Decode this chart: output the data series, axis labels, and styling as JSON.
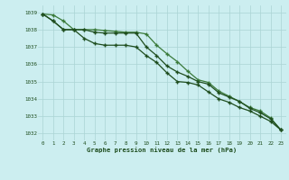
{
  "title": "Graphe pression niveau de la mer (hPa)",
  "bg_color": "#cceef0",
  "grid_color": "#aad4d4",
  "line_color_dark": "#1e4d1e",
  "line_color_light": "#3a7a3a",
  "xlim": [
    -0.5,
    23.5
  ],
  "ylim": [
    1031.6,
    1039.4
  ],
  "yticks": [
    1032,
    1033,
    1034,
    1035,
    1036,
    1037,
    1038,
    1039
  ],
  "xticks": [
    0,
    1,
    2,
    3,
    4,
    5,
    6,
    7,
    8,
    9,
    10,
    11,
    12,
    13,
    14,
    15,
    16,
    17,
    18,
    19,
    20,
    21,
    22,
    23
  ],
  "series1": [
    1038.9,
    1038.85,
    1038.5,
    1038.0,
    1038.0,
    1038.0,
    1037.95,
    1037.9,
    1037.85,
    1037.85,
    1037.75,
    1037.1,
    1036.6,
    1036.15,
    1035.6,
    1035.1,
    1034.95,
    1034.45,
    1034.15,
    1033.85,
    1033.5,
    1033.3,
    1032.9,
    1032.2
  ],
  "series2": [
    1038.9,
    1038.5,
    1038.0,
    1038.0,
    1038.0,
    1037.85,
    1037.8,
    1037.8,
    1037.8,
    1037.8,
    1037.0,
    1036.5,
    1035.9,
    1035.55,
    1035.3,
    1035.0,
    1034.85,
    1034.35,
    1034.1,
    1033.85,
    1033.45,
    1033.2,
    1032.85,
    1032.2
  ],
  "series3": [
    1038.9,
    1038.5,
    1038.0,
    1038.0,
    1037.5,
    1037.2,
    1037.1,
    1037.1,
    1037.1,
    1037.0,
    1036.5,
    1036.1,
    1035.5,
    1035.0,
    1034.95,
    1034.8,
    1034.4,
    1034.0,
    1033.8,
    1033.5,
    1033.3,
    1033.0,
    1032.7,
    1032.2
  ]
}
